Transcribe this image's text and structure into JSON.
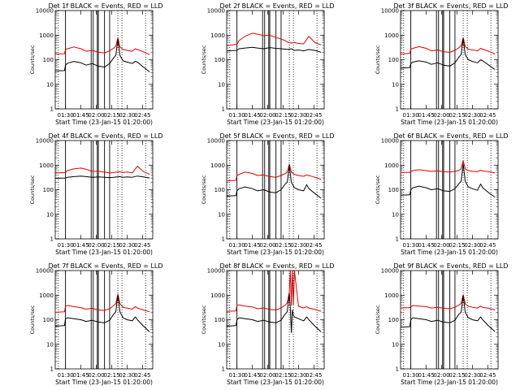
{
  "figure": {
    "xlabel": "Start Time (23-Jan-15 01:20:00)",
    "ylabel": "Counts/sec",
    "x_tick_labels": [
      "01:30",
      "01:45",
      "02:00",
      "02:15",
      "02:30",
      "02:45"
    ],
    "y_tick_labels": [
      "1",
      "10",
      "100",
      "1000",
      "10000"
    ],
    "colors": {
      "events": "#000000",
      "lld": "#e00000",
      "axes": "#000000",
      "background": "#ffffff"
    }
  },
  "chart_data": [
    {
      "type": "line",
      "title": "Det 1f BLACK = Events, RED = LLD",
      "x_minutes_since_0120": [
        0,
        9,
        10,
        12,
        18,
        25,
        30,
        36,
        42,
        48,
        53,
        57,
        59,
        61,
        63,
        66,
        70,
        75,
        78,
        80,
        86,
        92
      ],
      "series": [
        {
          "name": "Events",
          "values": [
            35,
            36,
            60,
            72,
            85,
            75,
            60,
            70,
            55,
            50,
            70,
            120,
            150,
            650,
            150,
            90,
            80,
            70,
            85,
            80,
            50,
            32
          ]
        },
        {
          "name": "LLD",
          "values": [
            170,
            175,
            260,
            280,
            330,
            280,
            220,
            240,
            200,
            190,
            230,
            300,
            350,
            800,
            330,
            260,
            240,
            220,
            280,
            260,
            210,
            160
          ]
        }
      ],
      "ylim": [
        1,
        10000
      ],
      "yscale": "log",
      "xlim": [
        0,
        95
      ],
      "solid_vlines": [
        10,
        35,
        37,
        41,
        42,
        48,
        53
      ],
      "dotted_vlines": [
        3,
        61,
        65,
        88
      ]
    },
    {
      "type": "line",
      "title": "Det 2f BLACK = Events, RED = LLD",
      "x_minutes_since_0120": [
        0,
        10,
        12,
        18,
        25,
        30,
        36,
        42,
        48,
        53,
        57,
        60,
        63,
        66,
        70,
        75,
        80,
        86,
        92
      ],
      "series": [
        {
          "name": "Events",
          "values": [
            230,
            240,
            280,
            300,
            320,
            300,
            280,
            310,
            290,
            280,
            270,
            260,
            280,
            240,
            250,
            230,
            260,
            240,
            200
          ]
        },
        {
          "name": "LLD",
          "values": [
            380,
            420,
            600,
            900,
            1200,
            1100,
            950,
            1000,
            800,
            700,
            600,
            500,
            480,
            500,
            460,
            440,
            900,
            500,
            400
          ]
        }
      ],
      "ylim": [
        1,
        10000
      ],
      "yscale": "log",
      "xlim": [
        0,
        95
      ],
      "solid_vlines": [
        10,
        35,
        37,
        41,
        42,
        48,
        53
      ],
      "dotted_vlines": [
        3,
        61,
        65,
        88
      ]
    },
    {
      "type": "line",
      "title": "Det 3f BLACK = Events, RED = LLD",
      "x_minutes_since_0120": [
        0,
        9,
        10,
        12,
        18,
        25,
        30,
        36,
        42,
        48,
        53,
        57,
        59,
        61,
        63,
        66,
        70,
        75,
        78,
        80,
        86,
        92
      ],
      "series": [
        {
          "name": "Events",
          "values": [
            45,
            48,
            70,
            80,
            90,
            80,
            65,
            75,
            60,
            55,
            75,
            130,
            160,
            700,
            160,
            100,
            85,
            75,
            100,
            90,
            60,
            40
          ]
        },
        {
          "name": "LLD",
          "values": [
            170,
            180,
            270,
            290,
            340,
            290,
            230,
            250,
            210,
            200,
            240,
            310,
            360,
            800,
            340,
            270,
            250,
            230,
            290,
            270,
            220,
            170
          ]
        }
      ],
      "ylim": [
        1,
        10000
      ],
      "yscale": "log",
      "xlim": [
        0,
        95
      ],
      "solid_vlines": [
        10,
        35,
        37,
        41,
        42,
        48,
        53
      ],
      "dotted_vlines": [
        3,
        61,
        65,
        88
      ]
    },
    {
      "type": "line",
      "title": "Det 4f BLACK = Events, RED = LLD",
      "x_minutes_since_0120": [
        0,
        10,
        12,
        18,
        25,
        30,
        36,
        42,
        48,
        53,
        57,
        60,
        63,
        66,
        70,
        75,
        80,
        86,
        92
      ],
      "series": [
        {
          "name": "Events",
          "values": [
            290,
            300,
            320,
            340,
            360,
            340,
            320,
            330,
            320,
            310,
            320,
            330,
            340,
            320,
            330,
            320,
            360,
            330,
            300
          ]
        },
        {
          "name": "LLD",
          "values": [
            480,
            500,
            600,
            700,
            760,
            680,
            560,
            560,
            520,
            480,
            500,
            520,
            540,
            500,
            520,
            480,
            900,
            540,
            420
          ]
        }
      ],
      "ylim": [
        1,
        10000
      ],
      "yscale": "log",
      "xlim": [
        0,
        95
      ],
      "solid_vlines": [
        10,
        35,
        37,
        41,
        42,
        48,
        53
      ],
      "dotted_vlines": [
        3,
        61,
        65,
        88
      ]
    },
    {
      "type": "line",
      "title": "Det 5f BLACK = Events, RED = LLD",
      "x_minutes_since_0120": [
        0,
        9,
        10,
        12,
        18,
        25,
        30,
        36,
        42,
        48,
        53,
        57,
        59,
        61,
        63,
        66,
        70,
        75,
        78,
        80,
        86,
        92
      ],
      "series": [
        {
          "name": "Events",
          "values": [
            55,
            58,
            90,
            110,
            130,
            110,
            90,
            100,
            80,
            75,
            100,
            170,
            200,
            950,
            200,
            120,
            100,
            90,
            160,
            110,
            70,
            45
          ]
        },
        {
          "name": "LLD",
          "values": [
            230,
            240,
            380,
            420,
            520,
            460,
            380,
            400,
            340,
            320,
            380,
            450,
            520,
            1100,
            520,
            420,
            380,
            350,
            400,
            380,
            320,
            260
          ]
        }
      ],
      "ylim": [
        1,
        10000
      ],
      "yscale": "log",
      "xlim": [
        0,
        95
      ],
      "solid_vlines": [
        10,
        35,
        37,
        41,
        42,
        48,
        53
      ],
      "dotted_vlines": [
        3,
        61,
        65,
        88
      ]
    },
    {
      "type": "line",
      "title": "Det 6f BLACK = Events, RED = LLD",
      "x_minutes_since_0120": [
        0,
        9,
        10,
        12,
        18,
        25,
        30,
        36,
        42,
        48,
        53,
        57,
        59,
        61,
        63,
        66,
        70,
        75,
        78,
        80,
        86,
        92
      ],
      "series": [
        {
          "name": "Events",
          "values": [
            60,
            62,
            100,
            120,
            140,
            120,
            100,
            110,
            90,
            85,
            110,
            180,
            220,
            1100,
            220,
            130,
            110,
            95,
            170,
            120,
            75,
            50
          ]
        },
        {
          "name": "LLD",
          "values": [
            500,
            510,
            560,
            600,
            650,
            600,
            560,
            580,
            540,
            520,
            560,
            620,
            700,
            1500,
            700,
            600,
            560,
            540,
            620,
            580,
            540,
            480
          ]
        }
      ],
      "ylim": [
        1,
        10000
      ],
      "yscale": "log",
      "xlim": [
        0,
        95
      ],
      "solid_vlines": [
        10,
        35,
        37,
        41,
        42,
        48,
        53
      ],
      "dotted_vlines": [
        3,
        61,
        65,
        88
      ]
    },
    {
      "type": "line",
      "title": "Det 7f BLACK = Events, RED = LLD",
      "x_minutes_since_0120": [
        0,
        9,
        10,
        12,
        18,
        25,
        30,
        36,
        42,
        48,
        53,
        57,
        59,
        61,
        63,
        66,
        70,
        75,
        78,
        80,
        86,
        92
      ],
      "series": [
        {
          "name": "Events",
          "values": [
            55,
            58,
            110,
            120,
            110,
            100,
            85,
            95,
            80,
            75,
            95,
            170,
            210,
            1000,
            210,
            120,
            100,
            90,
            130,
            100,
            55,
            32
          ]
        },
        {
          "name": "LLD",
          "values": [
            200,
            210,
            360,
            380,
            340,
            310,
            270,
            290,
            250,
            240,
            280,
            380,
            450,
            1100,
            450,
            320,
            300,
            270,
            340,
            300,
            250,
            210
          ]
        }
      ],
      "ylim": [
        1,
        10000
      ],
      "yscale": "log",
      "xlim": [
        0,
        95
      ],
      "solid_vlines": [
        10,
        35,
        37,
        41,
        42,
        48,
        53
      ],
      "dotted_vlines": [
        3,
        61,
        65,
        88
      ]
    },
    {
      "type": "line",
      "title": "Det 8f BLACK = Events, RED = LLD",
      "x_minutes_since_0120": [
        0,
        9,
        10,
        12,
        18,
        25,
        30,
        36,
        42,
        48,
        53,
        57,
        59,
        61,
        62,
        63,
        64,
        65,
        66,
        70,
        75,
        78,
        80,
        86,
        92
      ],
      "series": [
        {
          "name": "Events",
          "values": [
            55,
            58,
            100,
            120,
            110,
            100,
            85,
            95,
            80,
            75,
            95,
            170,
            210,
            1200,
            300,
            30,
            250,
            150,
            130,
            110,
            90,
            130,
            100,
            55,
            32
          ]
        },
        {
          "name": "LLD",
          "values": [
            220,
            225,
            380,
            400,
            360,
            330,
            280,
            300,
            260,
            250,
            300,
            400,
            480,
            1300,
            10000,
            380,
            10000,
            400,
            10000,
            350,
            300,
            340,
            300,
            260,
            220
          ]
        }
      ],
      "ylim": [
        1,
        10000
      ],
      "yscale": "log",
      "xlim": [
        0,
        95
      ],
      "solid_vlines": [
        10,
        35,
        37,
        41,
        42,
        48,
        53
      ],
      "dotted_vlines": [
        3,
        61,
        65,
        88
      ]
    },
    {
      "type": "line",
      "title": "Det 9f BLACK = Events, RED = LLD",
      "x_minutes_since_0120": [
        0,
        9,
        10,
        12,
        18,
        25,
        30,
        36,
        42,
        48,
        53,
        57,
        59,
        61,
        63,
        66,
        70,
        75,
        78,
        80,
        86,
        92
      ],
      "series": [
        {
          "name": "Events",
          "values": [
            50,
            52,
            100,
            120,
            110,
            100,
            85,
            95,
            80,
            75,
            95,
            170,
            200,
            950,
            200,
            120,
            100,
            90,
            130,
            100,
            55,
            33
          ]
        },
        {
          "name": "LLD",
          "values": [
            300,
            310,
            340,
            380,
            360,
            340,
            300,
            320,
            290,
            280,
            320,
            400,
            460,
            1050,
            440,
            350,
            320,
            300,
            360,
            320,
            290,
            250
          ]
        }
      ],
      "ylim": [
        1,
        10000
      ],
      "yscale": "log",
      "xlim": [
        0,
        95
      ],
      "solid_vlines": [
        10,
        35,
        37,
        41,
        42,
        48,
        53
      ],
      "dotted_vlines": [
        3,
        61,
        65,
        88
      ]
    }
  ]
}
